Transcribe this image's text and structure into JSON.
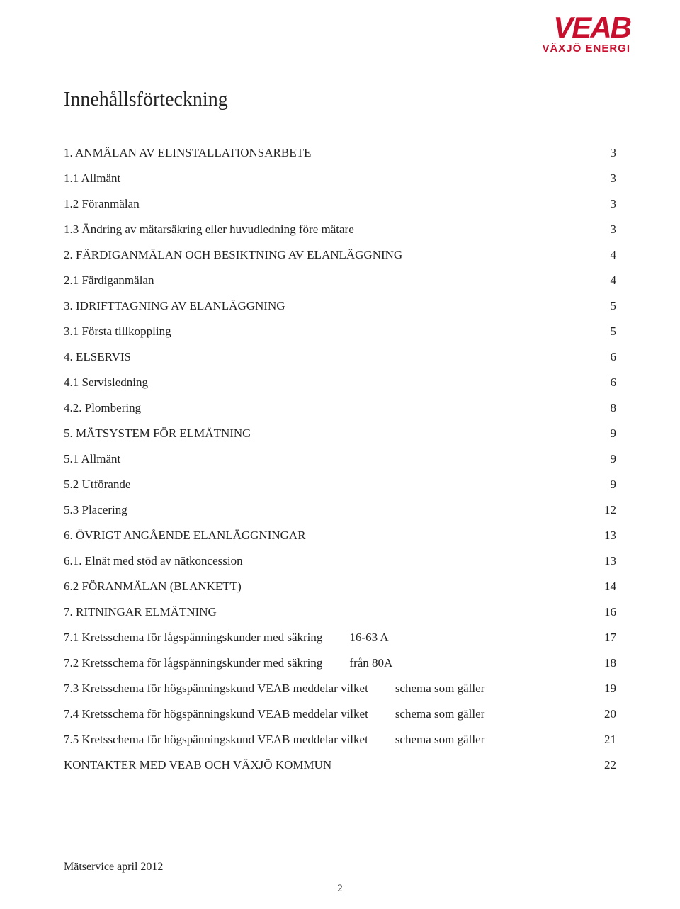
{
  "colors": {
    "brand_red": "#c8102e",
    "text": "#222222",
    "background": "#ffffff"
  },
  "typography": {
    "body_font": "Georgia, serif",
    "logo_font": "Arial, Helvetica, sans-serif",
    "title_fontsize_pt": 21,
    "body_fontsize_pt": 13,
    "logo_main_fontsize_pt": 32,
    "logo_sub_fontsize_pt": 11
  },
  "logo": {
    "main": "VEAB",
    "sub": "VÄXJÖ ENERGI"
  },
  "title": "Innehållsförteckning",
  "toc": [
    {
      "label": "1. ANMÄLAN AV ELINSTALLATIONSARBETE",
      "middle": "",
      "page": "3",
      "level": 1
    },
    {
      "label": "1.1 Allmänt",
      "middle": "",
      "page": "3",
      "level": 2
    },
    {
      "label": "1.2 Föranmälan",
      "middle": "",
      "page": "3",
      "level": 2
    },
    {
      "label": "1.3 Ändring av mätarsäkring eller huvudledning före mätare",
      "middle": "",
      "page": "3",
      "level": 2
    },
    {
      "label": "2. FÄRDIGANMÄLAN OCH BESIKTNING AV ELANLÄGGNING",
      "middle": "",
      "page": "4",
      "level": 1
    },
    {
      "label": "2.1 Färdiganmälan",
      "middle": "",
      "page": "4",
      "level": 2
    },
    {
      "label": "3. IDRIFTTAGNING AV ELANLÄGGNING",
      "middle": "",
      "page": "5",
      "level": 1
    },
    {
      "label": "3.1 Första tillkoppling",
      "middle": "",
      "page": "5",
      "level": 2
    },
    {
      "label": "4. ELSERVIS",
      "middle": "",
      "page": "6",
      "level": 1
    },
    {
      "label": "4.1 Servisledning",
      "middle": "",
      "page": "6",
      "level": 2
    },
    {
      "label": "4.2. Plombering",
      "middle": "",
      "page": "8",
      "level": 2
    },
    {
      "label": "5. MÄTSYSTEM FÖR ELMÄTNING",
      "middle": "",
      "page": "9",
      "level": 1
    },
    {
      "label": "5.1 Allmänt",
      "middle": "",
      "page": "9",
      "level": 2
    },
    {
      "label": "5.2 Utförande",
      "middle": "",
      "page": "9",
      "level": 2
    },
    {
      "label": "5.3 Placering",
      "middle": "",
      "page": "12",
      "level": 2
    },
    {
      "label": "6. ÖVRIGT ANGÅENDE ELANLÄGGNINGAR",
      "middle": "",
      "page": "13",
      "level": 1
    },
    {
      "label": "6.1. Elnät med stöd av nätkoncession",
      "middle": "",
      "page": "13",
      "level": 2
    },
    {
      "label": "6.2 FÖRANMÄLAN (BLANKETT)",
      "middle": "",
      "page": "14",
      "level": 1
    },
    {
      "label": "7. RITNINGAR ELMÄTNING",
      "middle": "",
      "page": "16",
      "level": 1
    },
    {
      "label": "7.1 Kretsschema för lågspänningskunder med säkring",
      "middle": "16-63 A",
      "page": "17",
      "level": 2
    },
    {
      "label": "7.2 Kretsschema för lågspänningskunder med säkring",
      "middle": "från 80A",
      "page": "18",
      "level": 2
    },
    {
      "label": "7.3 Kretsschema för högspänningskund VEAB meddelar vilket",
      "middle": "schema som gäller",
      "page": "19",
      "level": 2
    },
    {
      "label": "7.4 Kretsschema för högspänningskund VEAB meddelar vilket",
      "middle": "schema som gäller",
      "page": "20",
      "level": 2
    },
    {
      "label": "7.5 Kretsschema för högspänningskund VEAB meddelar vilket",
      "middle": "schema som gäller",
      "page": "21",
      "level": 2
    },
    {
      "label": "KONTAKTER MED VEAB OCH VÄXJÖ KOMMUN",
      "middle": "",
      "page": "22",
      "level": 1
    }
  ],
  "footer": {
    "text": "Mätservice april 2012",
    "page_number": "2"
  }
}
